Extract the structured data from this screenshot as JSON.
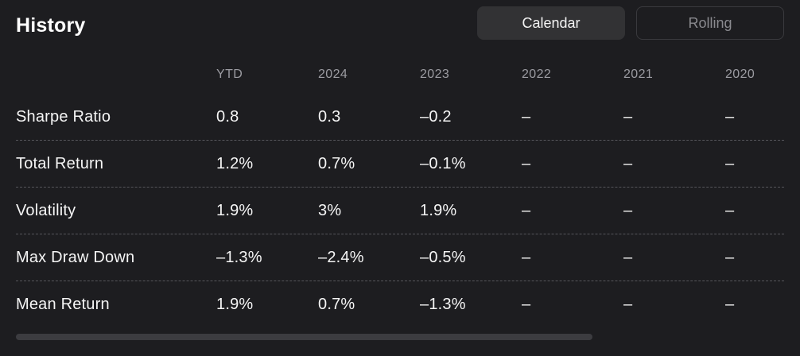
{
  "header": {
    "title": "History",
    "toggle": {
      "calendar_label": "Calendar",
      "rolling_label": "Rolling",
      "active": "Calendar"
    }
  },
  "colors": {
    "background": "#1d1d20",
    "active_button_bg": "#323234",
    "inactive_button_border": "#3a3a3e",
    "header_text": "#9b9ba1",
    "body_text": "#f5f5f5",
    "dashed_divider": "#55555a",
    "scrollbar_thumb": "#3c3c40"
  },
  "table": {
    "columns": [
      "YTD",
      "2024",
      "2023",
      "2022",
      "2021",
      "2020"
    ],
    "rows": [
      {
        "label": "Sharpe Ratio",
        "values": [
          "0.8",
          "0.3",
          "–0.2",
          "–",
          "–",
          "–"
        ]
      },
      {
        "label": "Total Return",
        "values": [
          "1.2%",
          "0.7%",
          "–0.1%",
          "–",
          "–",
          "–"
        ]
      },
      {
        "label": "Volatility",
        "values": [
          "1.9%",
          "3%",
          "1.9%",
          "–",
          "–",
          "–"
        ]
      },
      {
        "label": "Max Draw Down",
        "values": [
          "–1.3%",
          "–2.4%",
          "–0.5%",
          "–",
          "–",
          "–"
        ]
      },
      {
        "label": "Mean Return",
        "values": [
          "1.9%",
          "0.7%",
          "–1.3%",
          "–",
          "–",
          "–"
        ]
      }
    ]
  }
}
